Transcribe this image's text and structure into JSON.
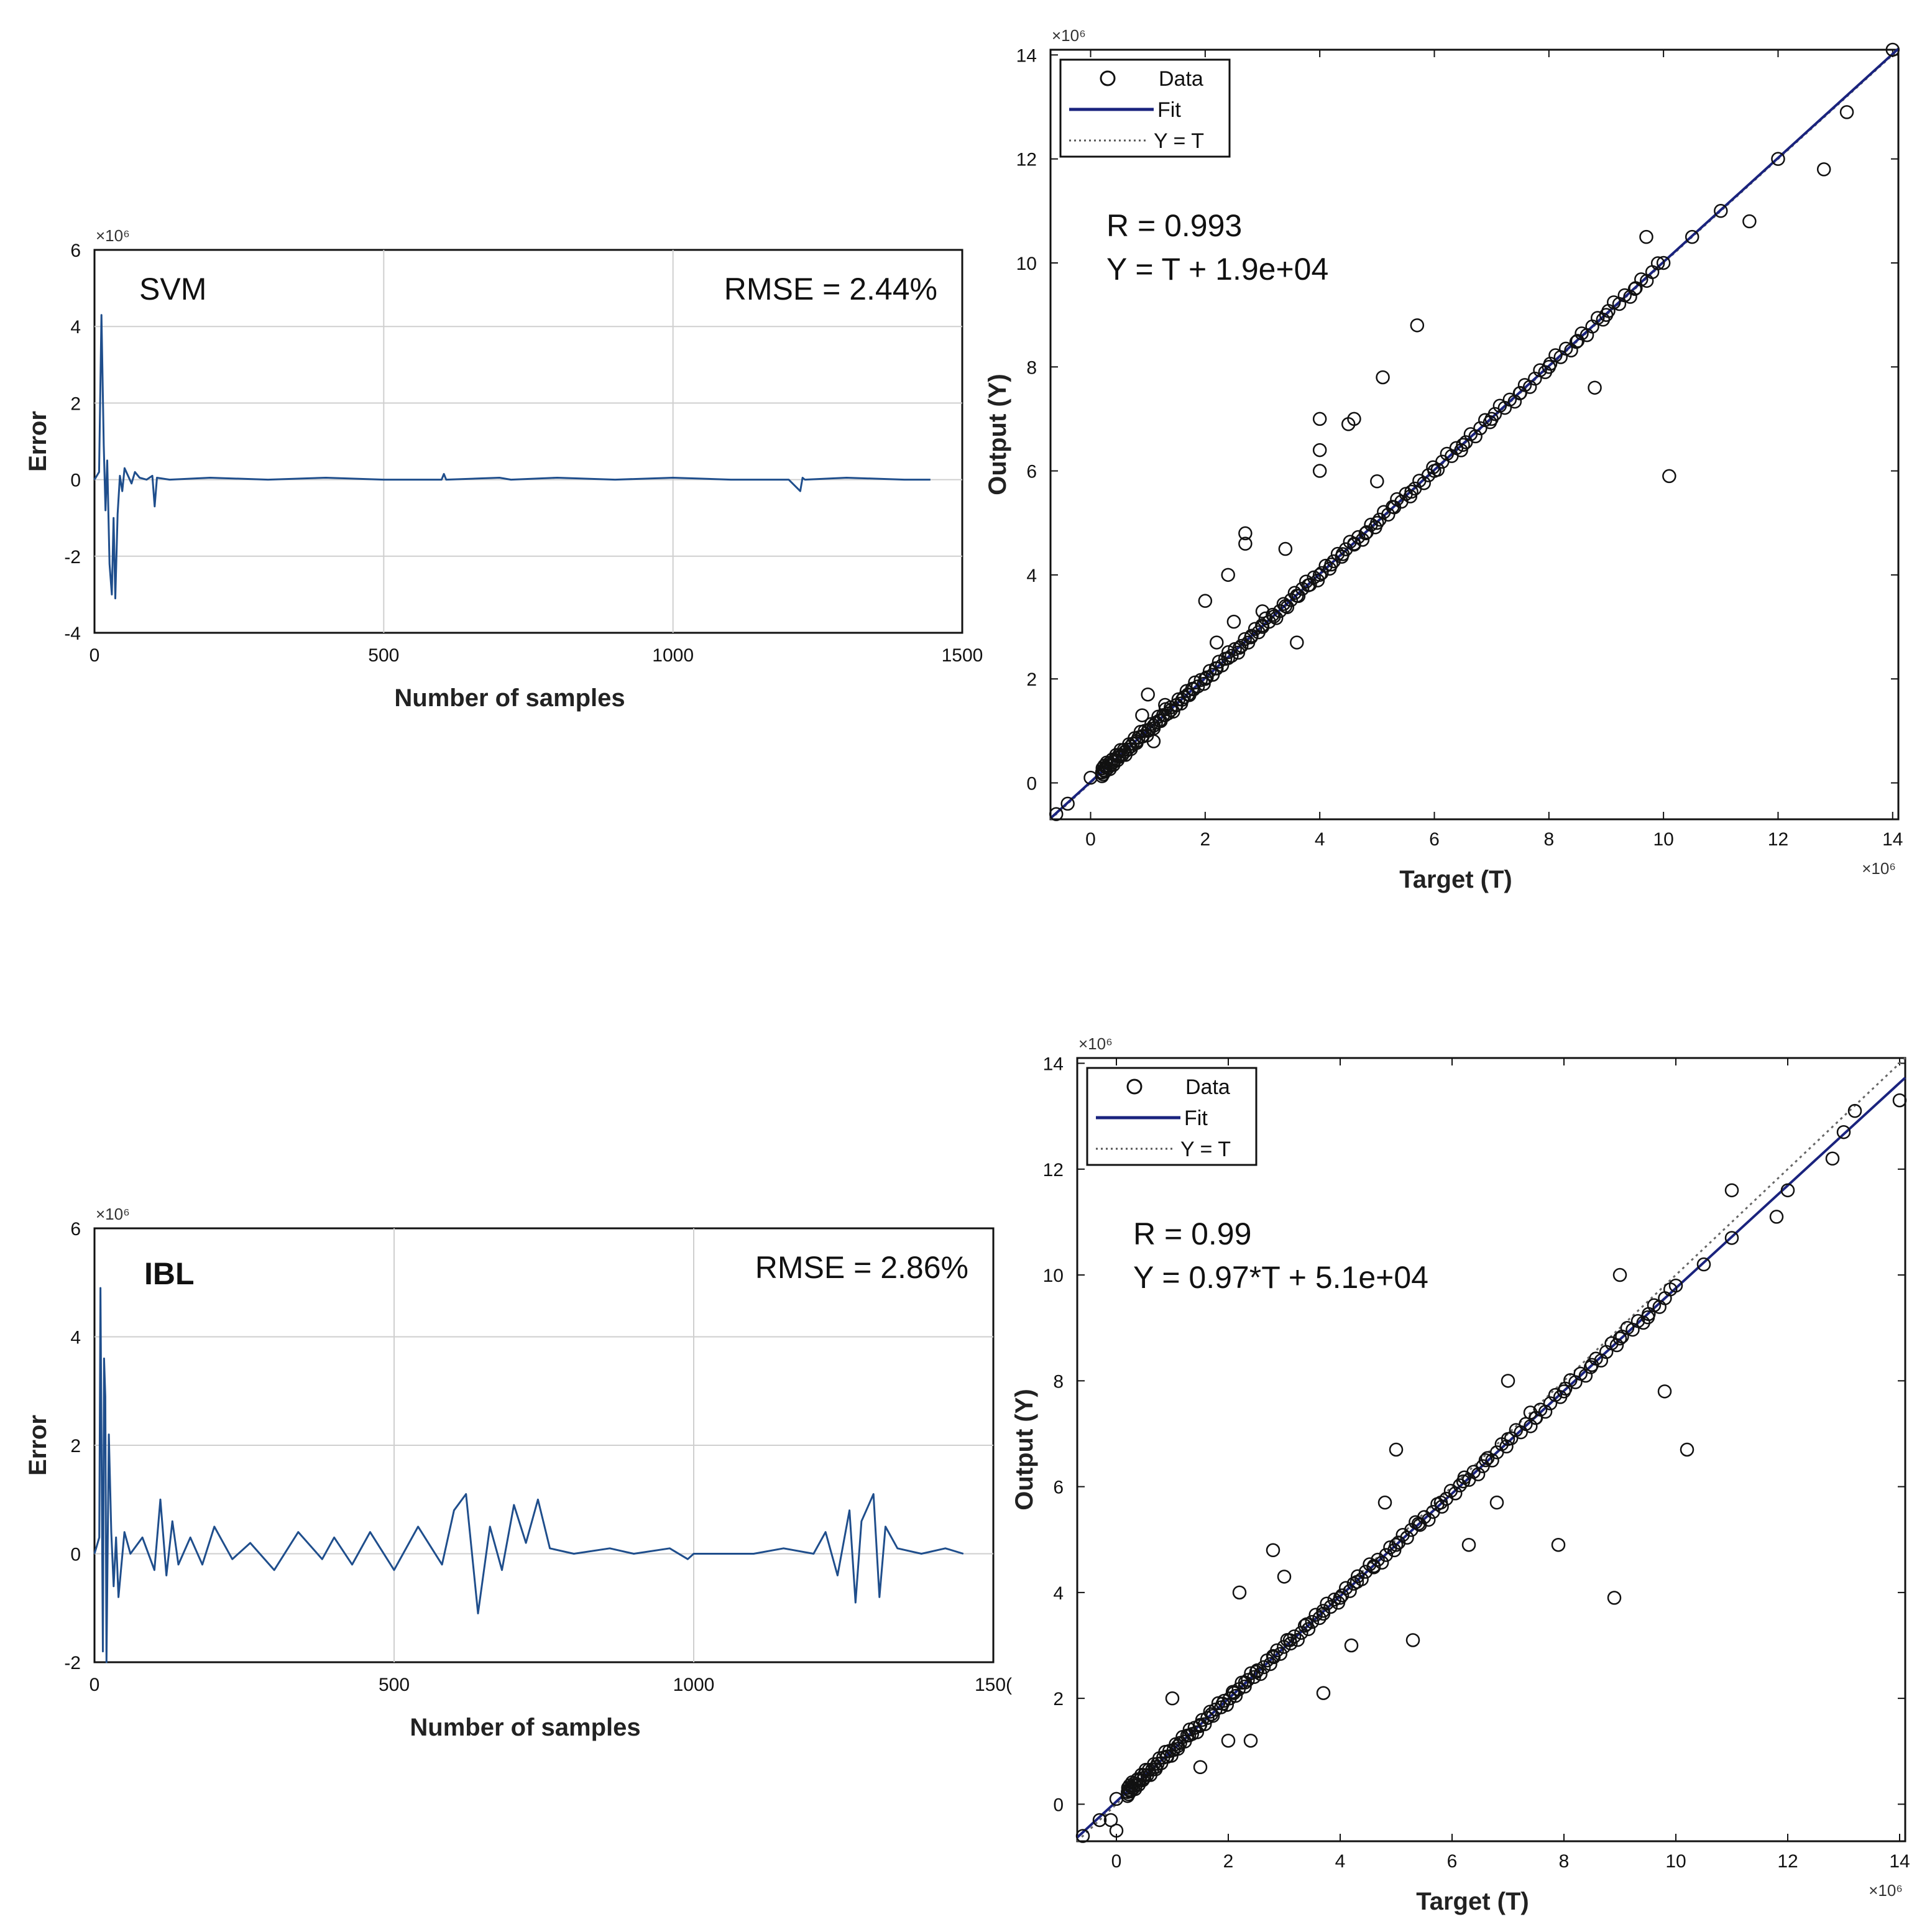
{
  "chart_data": [
    {
      "type": "line",
      "title": "SVM",
      "annotation": "RMSE = 2.44%",
      "xlabel": "Number of samples",
      "ylabel": "Error",
      "y_multiplier": "×10⁶",
      "xlim": [
        0,
        1500
      ],
      "ylim": [
        -4,
        6
      ],
      "xticks": [
        0,
        500,
        1000,
        1500
      ],
      "yticks": [
        -4,
        -2,
        0,
        2,
        4,
        6
      ],
      "grid": true,
      "series": [
        {
          "name": "Error",
          "color": "#1f4e8c",
          "x": [
            0,
            8,
            12,
            16,
            19,
            22,
            26,
            30,
            33,
            36,
            40,
            44,
            48,
            52,
            58,
            64,
            70,
            78,
            90,
            100,
            104,
            108,
            130,
            200,
            300,
            400,
            500,
            600,
            604,
            608,
            700,
            720,
            800,
            900,
            1000,
            1100,
            1200,
            1220,
            1224,
            1228,
            1300,
            1400,
            1445
          ],
          "values": [
            0,
            0.2,
            4.3,
            0.9,
            -0.8,
            0.5,
            -2.2,
            -3.0,
            -1.0,
            -3.1,
            -0.9,
            0.1,
            -0.3,
            0.3,
            0.1,
            -0.1,
            0.2,
            0.05,
            0.0,
            0.1,
            -0.7,
            0.05,
            0.0,
            0.05,
            0.0,
            0.05,
            0.0,
            0.0,
            0.15,
            0.0,
            0.05,
            0.0,
            0.05,
            0.0,
            0.05,
            0.0,
            0.0,
            -0.3,
            0.05,
            0.0,
            0.05,
            0.0,
            0.0
          ]
        }
      ]
    },
    {
      "type": "scatter",
      "annotation": [
        "R = 0.993",
        "Y = T + 1.9e+04"
      ],
      "xlabel": "Target (T)",
      "ylabel": "Output (Y)",
      "x_multiplier": "×10⁶",
      "y_multiplier": "×10⁶",
      "xlim": [
        -0.7,
        14.1
      ],
      "ylim": [
        -0.7,
        14.1
      ],
      "xticks": [
        0,
        2,
        4,
        6,
        8,
        10,
        12,
        14
      ],
      "yticks": [
        0,
        2,
        4,
        6,
        8,
        10,
        12,
        14
      ],
      "legend": {
        "position": "top-left",
        "entries": [
          "Data",
          "Fit",
          "Y = T"
        ]
      },
      "fit": {
        "slope": 1.0,
        "intercept": 0.019,
        "color": "#1a237e"
      },
      "identity": true,
      "points_x": [
        -0.6,
        -0.4,
        0.0,
        0.2,
        0.4,
        0.5,
        0.6,
        0.7,
        0.8,
        0.9,
        1.0,
        1.1,
        1.2,
        1.3,
        1.4,
        1.5,
        1.6,
        1.7,
        1.8,
        2.0,
        2.2,
        2.4,
        2.6,
        2.8,
        3.0,
        3.2,
        3.4,
        3.6,
        3.8,
        4.0,
        4.2,
        4.4,
        4.6,
        4.8,
        5.0,
        5.3,
        5.6,
        6.0,
        6.5,
        7.0,
        7.5,
        8.0,
        8.5,
        9.0,
        9.5,
        10.0,
        10.5,
        11.0,
        12.0,
        14.0,
        0.9,
        1.0,
        1.1,
        1.3,
        2.0,
        2.2,
        2.4,
        2.5,
        2.7,
        2.7,
        3.0,
        3.4,
        3.6,
        4.0,
        4.0,
        4.0,
        4.5,
        4.6,
        5.0,
        5.1,
        5.7,
        8.8,
        9.7,
        10.1,
        11.5,
        12.8,
        13.2
      ],
      "points_y": [
        -0.6,
        -0.4,
        0.1,
        0.2,
        0.4,
        0.5,
        0.6,
        0.7,
        0.8,
        0.9,
        1.0,
        1.1,
        1.2,
        1.3,
        1.4,
        1.5,
        1.6,
        1.7,
        1.8,
        2.0,
        2.2,
        2.4,
        2.6,
        2.8,
        3.0,
        3.2,
        3.4,
        3.6,
        3.8,
        4.0,
        4.2,
        4.4,
        4.6,
        4.8,
        5.0,
        5.3,
        5.6,
        6.0,
        6.5,
        7.0,
        7.5,
        8.0,
        8.5,
        9.0,
        9.5,
        10.0,
        10.5,
        11.0,
        12.0,
        14.1,
        1.3,
        1.7,
        0.8,
        1.5,
        3.5,
        2.7,
        4.0,
        3.1,
        4.6,
        4.8,
        3.3,
        4.5,
        2.7,
        7.0,
        6.4,
        6.0,
        6.9,
        7.0,
        5.8,
        7.8,
        8.8,
        7.6,
        10.5,
        5.9,
        10.8,
        11.8,
        12.9
      ]
    },
    {
      "type": "line",
      "title": "IBL",
      "annotation": "RMSE = 2.86%",
      "xlabel": "Number of samples",
      "ylabel": "Error",
      "y_multiplier": "×10⁶",
      "xlim": [
        0,
        1500
      ],
      "ylim": [
        -2,
        6
      ],
      "xticks": [
        0,
        500,
        1000,
        "150("
      ],
      "yticks": [
        -2,
        0,
        2,
        4,
        6
      ],
      "grid": true,
      "series": [
        {
          "name": "Error",
          "color": "#1f4e8c",
          "x": [
            0,
            8,
            10,
            14,
            16,
            18,
            20,
            24,
            28,
            32,
            36,
            40,
            50,
            60,
            80,
            100,
            110,
            120,
            130,
            140,
            160,
            180,
            200,
            230,
            260,
            300,
            340,
            380,
            400,
            430,
            460,
            500,
            540,
            580,
            600,
            620,
            640,
            660,
            680,
            700,
            720,
            740,
            760,
            800,
            860,
            900,
            960,
            990,
            1000,
            1100,
            1150,
            1200,
            1220,
            1240,
            1260,
            1270,
            1280,
            1300,
            1310,
            1320,
            1340,
            1380,
            1420,
            1450
          ],
          "values": [
            0,
            0.3,
            4.9,
            -1.8,
            3.6,
            2.9,
            -2.0,
            2.2,
            0.4,
            -0.6,
            0.3,
            -0.8,
            0.4,
            0.0,
            0.3,
            -0.3,
            1.0,
            -0.4,
            0.6,
            -0.2,
            0.3,
            -0.2,
            0.5,
            -0.1,
            0.2,
            -0.3,
            0.4,
            -0.1,
            0.3,
            -0.2,
            0.4,
            -0.3,
            0.5,
            -0.2,
            0.8,
            1.1,
            -1.1,
            0.5,
            -0.3,
            0.9,
            0.2,
            1.0,
            0.1,
            0.0,
            0.1,
            0.0,
            0.1,
            -0.1,
            0.0,
            0.0,
            0.1,
            0.0,
            0.4,
            -0.4,
            0.8,
            -0.9,
            0.6,
            1.1,
            -0.8,
            0.5,
            0.1,
            0.0,
            0.1,
            0.0
          ]
        }
      ]
    },
    {
      "type": "scatter",
      "annotation": [
        "R = 0.99",
        "Y = 0.97*T + 5.1e+04"
      ],
      "xlabel": "Target (T)",
      "ylabel": "Output (Y)",
      "x_multiplier": "×10⁶",
      "y_multiplier": "×10⁶",
      "xlim": [
        -0.7,
        14.1
      ],
      "ylim": [
        -0.7,
        14.1
      ],
      "xticks": [
        0,
        2,
        4,
        6,
        8,
        10,
        12,
        14
      ],
      "yticks": [
        0,
        2,
        4,
        6,
        8,
        10,
        12,
        14
      ],
      "legend": {
        "position": "top-left",
        "entries": [
          "Data",
          "Fit",
          "Y = T"
        ]
      },
      "fit": {
        "slope": 0.97,
        "intercept": 0.051,
        "color": "#1a237e"
      },
      "identity": true,
      "points_x": [
        -0.6,
        -0.3,
        0.0,
        0.3,
        0.5,
        0.7,
        0.9,
        1.1,
        1.3,
        1.5,
        1.7,
        1.9,
        2.1,
        2.3,
        2.5,
        2.8,
        3.1,
        3.4,
        3.7,
        4.0,
        4.3,
        4.6,
        5.0,
        5.4,
        5.8,
        6.2,
        6.6,
        7.0,
        7.5,
        8.0,
        8.5,
        9.0,
        9.5,
        10.0,
        10.5,
        11.0,
        12.0,
        13.0,
        14.0,
        -0.1,
        0.0,
        1.0,
        1.5,
        2.0,
        2.2,
        2.4,
        2.8,
        3.0,
        3.7,
        4.2,
        4.8,
        5.0,
        5.3,
        6.3,
        6.8,
        7.0,
        7.4,
        7.9,
        8.9,
        9.0,
        9.8,
        10.2,
        11.0,
        11.8,
        12.8,
        13.2
      ],
      "points_y": [
        -0.6,
        -0.3,
        0.1,
        0.3,
        0.5,
        0.7,
        0.9,
        1.1,
        1.3,
        1.5,
        1.7,
        1.9,
        2.1,
        2.3,
        2.5,
        2.8,
        3.1,
        3.4,
        3.6,
        3.9,
        4.2,
        4.5,
        4.9,
        5.3,
        5.7,
        6.1,
        6.5,
        6.9,
        7.3,
        7.8,
        8.3,
        8.8,
        9.2,
        9.8,
        10.2,
        10.7,
        11.6,
        12.7,
        13.3,
        -0.3,
        -0.5,
        2.0,
        0.7,
        1.2,
        4.0,
        1.2,
        4.8,
        4.3,
        2.1,
        3.0,
        5.7,
        6.7,
        3.1,
        4.9,
        5.7,
        8.0,
        7.4,
        4.9,
        3.9,
        10.0,
        7.8,
        6.7,
        11.6,
        11.1,
        12.2,
        13.1
      ]
    }
  ]
}
